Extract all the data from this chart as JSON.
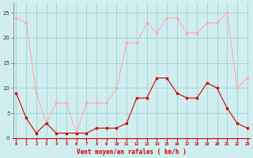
{
  "hours": [
    0,
    1,
    2,
    3,
    4,
    5,
    6,
    7,
    8,
    9,
    10,
    11,
    12,
    13,
    14,
    15,
    16,
    17,
    18,
    19,
    20,
    21,
    22,
    23
  ],
  "wind_avg": [
    9,
    4,
    1,
    3,
    1,
    1,
    1,
    1,
    2,
    2,
    2,
    3,
    8,
    8,
    12,
    12,
    9,
    8,
    8,
    11,
    10,
    6,
    3,
    2
  ],
  "wind_gust": [
    24,
    23,
    9,
    3,
    7,
    7,
    1,
    7,
    7,
    7,
    10,
    19,
    19,
    23,
    21,
    24,
    24,
    21,
    21,
    23,
    23,
    25,
    10,
    12
  ],
  "avg_color": "#cc0000",
  "gust_color": "#ffaaaa",
  "background_color": "#d0eef0",
  "grid_color": "#99cccc",
  "xlabel": "Vent moyen/en rafales ( km/h )",
  "yticks": [
    0,
    5,
    10,
    15,
    20,
    25
  ],
  "ylim": [
    0,
    27
  ],
  "xlim": [
    -0.3,
    23.3
  ]
}
